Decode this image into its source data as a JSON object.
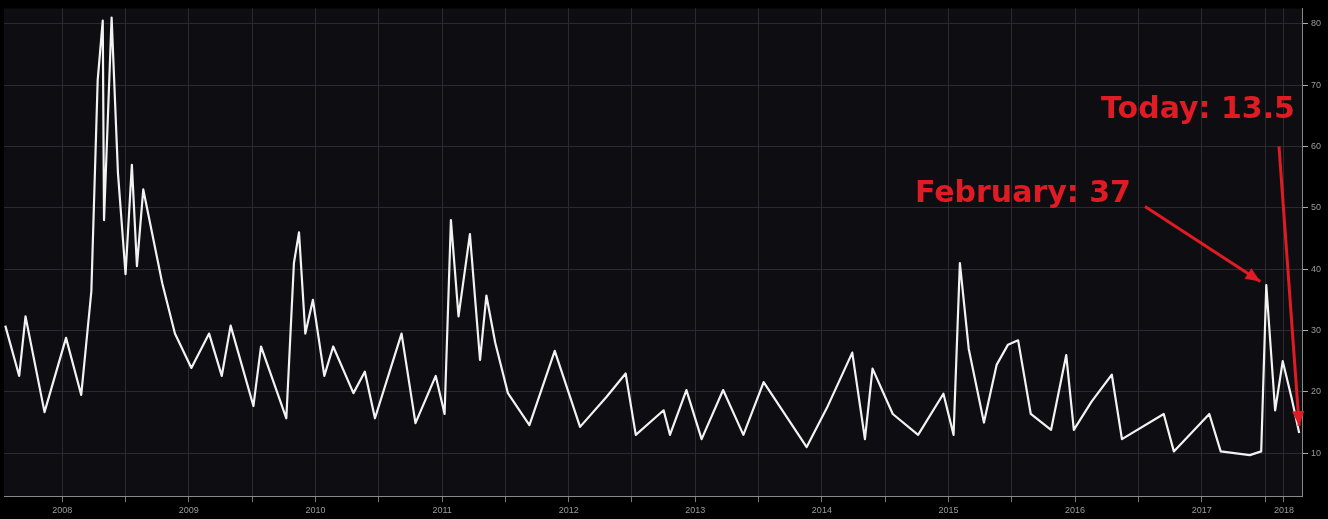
{
  "chart_data": {
    "type": "line",
    "x": [
      2008.05,
      2008.16,
      2008.21,
      2008.36,
      2008.53,
      2008.65,
      2008.73,
      2008.78,
      2008.82,
      2008.83,
      2008.89,
      2008.94,
      2009.0,
      2009.05,
      2009.09,
      2009.14,
      2009.29,
      2009.39,
      2009.52,
      2009.66,
      2009.76,
      2009.83,
      2010.01,
      2010.07,
      2010.27,
      2010.33,
      2010.37,
      2010.42,
      2010.48,
      2010.57,
      2010.64,
      2010.8,
      2010.89,
      2010.97,
      2011.18,
      2011.29,
      2011.45,
      2011.52,
      2011.57,
      2011.63,
      2011.72,
      2011.8,
      2011.85,
      2011.92,
      2012.02,
      2012.19,
      2012.39,
      2012.59,
      2012.8,
      2012.95,
      2013.03,
      2013.25,
      2013.3,
      2013.43,
      2013.55,
      2013.72,
      2013.88,
      2014.04,
      2014.38,
      2014.54,
      2014.74,
      2014.84,
      2014.9,
      2015.06,
      2015.26,
      2015.46,
      2015.54,
      2015.59,
      2015.66,
      2015.78,
      2015.88,
      2015.97,
      2016.05,
      2016.15,
      2016.31,
      2016.43,
      2016.49,
      2016.63,
      2016.79,
      2016.87,
      2017.2,
      2017.28,
      2017.56,
      2017.65,
      2017.88,
      2017.97,
      2018.01,
      2018.08,
      2018.14,
      2018.21,
      2018.27
    ],
    "series": [
      {
        "color": "#f2f2f2",
        "values": [
          30.8,
          22.6,
          32.3,
          16.7,
          28.8,
          19.5,
          36.4,
          70.8,
          80.5,
          48,
          81,
          55.7,
          39.2,
          57,
          40.5,
          53,
          37.7,
          29.5,
          23.9,
          29.5,
          22.6,
          30.8,
          17.7,
          27.4,
          15.7,
          41,
          46,
          29.5,
          35,
          22.6,
          27.4,
          19.8,
          23.3,
          15.7,
          29.5,
          14.9,
          22.6,
          16.4,
          48,
          32.3,
          45.7,
          25.2,
          35.7,
          28,
          19.8,
          14.6,
          26.7,
          14.3,
          19.2,
          23,
          13,
          17,
          13,
          20.3,
          12.3,
          20.3,
          13,
          21.6,
          11,
          17.4,
          26.4,
          12.3,
          23.8,
          16.4,
          13,
          19.7,
          13,
          41,
          27,
          15,
          24.4,
          27.7,
          28.4,
          16.4,
          13.8,
          26,
          13.8,
          18.4,
          22.8,
          12.3,
          16.4,
          10.3,
          16.4,
          10.3,
          9.7,
          10.3,
          37.4,
          17,
          25,
          19,
          13.3
        ]
      }
    ],
    "xlim": [
      2008.04,
      2018.3
    ],
    "xticks": [
      {
        "value": 2008.5,
        "label": "2008"
      },
      {
        "value": 2009,
        "label": null
      },
      {
        "value": 2009.5,
        "label": "2009"
      },
      {
        "value": 2010,
        "label": null
      },
      {
        "value": 2010.5,
        "label": "2010"
      },
      {
        "value": 2011,
        "label": null
      },
      {
        "value": 2011.5,
        "label": "2011"
      },
      {
        "value": 2012,
        "label": null
      },
      {
        "value": 2012.5,
        "label": "2012"
      },
      {
        "value": 2013,
        "label": null
      },
      {
        "value": 2013.5,
        "label": "2013"
      },
      {
        "value": 2014,
        "label": null
      },
      {
        "value": 2014.5,
        "label": "2014"
      },
      {
        "value": 2015,
        "label": null
      },
      {
        "value": 2015.5,
        "label": "2015"
      },
      {
        "value": 2016,
        "label": null
      },
      {
        "value": 2016.5,
        "label": "2016"
      },
      {
        "value": 2017,
        "label": null
      },
      {
        "value": 2017.5,
        "label": "2017"
      },
      {
        "value": 2018,
        "label": null
      },
      {
        "value": 2018.15,
        "label": "2018"
      }
    ],
    "ylim": [
      3,
      82.5
    ],
    "yticks": [
      10,
      20,
      30,
      40,
      50,
      60,
      70,
      80
    ],
    "grid": true,
    "annotations": [
      {
        "text": "February: 37",
        "x": 2018.01,
        "y": 37
      },
      {
        "text": "Today: 13.5",
        "x": 2018.27,
        "y": 13.5
      }
    ]
  }
}
